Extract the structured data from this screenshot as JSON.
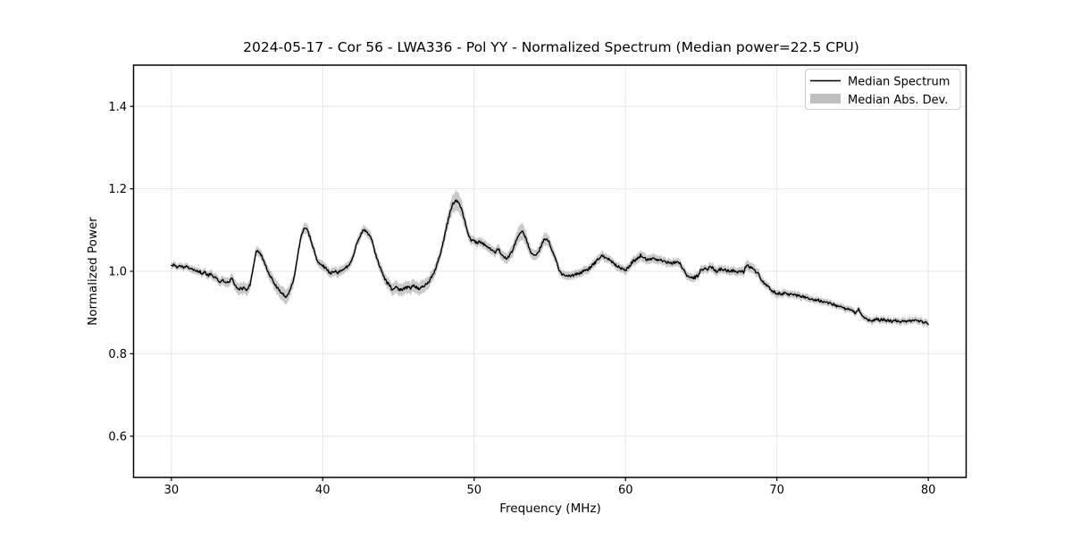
{
  "figure": {
    "title": "2024-05-17 - Cor 56 - LWA336 - Pol YY - Normalized Spectrum (Median power=22.5 CPU)",
    "background": "#ffffff"
  },
  "colors": {
    "line": "#000000",
    "band": "#808080",
    "band_opacity": 0.42,
    "grid": "#e7e7e7",
    "spine": "#000000",
    "legend_edge": "#cccccc"
  },
  "chart_data": {
    "type": "line",
    "title": "2024-05-17 - Cor 56 - LWA336 - Pol YY - Normalized Spectrum (Median power=22.5 CPU)",
    "xlabel": "Frequency (MHz)",
    "ylabel": "Normalized Power",
    "xlim": [
      27.5,
      82.5
    ],
    "ylim": [
      0.5,
      1.5
    ],
    "xticks": [
      30,
      40,
      50,
      60,
      70,
      80
    ],
    "xtick_labels": [
      "30",
      "40",
      "50",
      "60",
      "70",
      "80"
    ],
    "yticks": [
      0.6,
      0.8,
      1.0,
      1.2,
      1.4
    ],
    "ytick_labels": [
      "0.6",
      "0.8",
      "1.0",
      "1.2",
      "1.4"
    ],
    "grid": true,
    "noise_amplitude": 0.0035,
    "legend": {
      "position": "upper right",
      "entries": [
        {
          "label": "Median Spectrum",
          "type": "line",
          "color": "#000000"
        },
        {
          "label": "Median Abs. Dev.",
          "type": "patch",
          "color": "#808080"
        }
      ]
    },
    "series": [
      {
        "name": "Median Spectrum",
        "type": "line",
        "color": "#000000",
        "x": [
          30.0,
          30.2,
          30.4,
          30.6,
          30.8,
          31.0,
          31.2,
          31.4,
          31.6,
          31.8,
          32.0,
          32.2,
          32.4,
          32.6,
          32.8,
          33.0,
          33.2,
          33.4,
          33.6,
          33.8,
          34.0,
          34.2,
          34.4,
          34.6,
          34.8,
          35.0,
          35.2,
          35.4,
          35.6,
          35.8,
          36.0,
          36.2,
          36.4,
          36.6,
          36.8,
          37.0,
          37.2,
          37.4,
          37.6,
          37.8,
          38.0,
          38.2,
          38.4,
          38.6,
          38.8,
          39.0,
          39.2,
          39.4,
          39.6,
          39.8,
          40.0,
          40.2,
          40.4,
          40.6,
          40.8,
          41.0,
          41.2,
          41.4,
          41.6,
          41.8,
          42.0,
          42.2,
          42.4,
          42.6,
          42.8,
          43.0,
          43.2,
          43.4,
          43.6,
          43.8,
          44.0,
          44.2,
          44.4,
          44.6,
          44.8,
          45.0,
          45.2,
          45.4,
          45.6,
          45.8,
          46.0,
          46.2,
          46.4,
          46.6,
          46.8,
          47.0,
          47.2,
          47.4,
          47.6,
          47.8,
          48.0,
          48.2,
          48.4,
          48.6,
          48.8,
          49.0,
          49.2,
          49.4,
          49.6,
          49.8,
          50.0,
          50.2,
          50.4,
          50.6,
          50.8,
          51.0,
          51.2,
          51.4,
          51.6,
          51.8,
          52.0,
          52.2,
          52.4,
          52.6,
          52.8,
          53.0,
          53.2,
          53.4,
          53.6,
          53.8,
          54.0,
          54.2,
          54.4,
          54.6,
          54.8,
          55.0,
          55.2,
          55.4,
          55.6,
          55.8,
          56.0,
          56.2,
          56.4,
          56.6,
          56.8,
          57.0,
          57.2,
          57.4,
          57.6,
          57.8,
          58.0,
          58.2,
          58.4,
          58.6,
          58.8,
          59.0,
          59.2,
          59.4,
          59.6,
          59.8,
          60.0,
          60.2,
          60.4,
          60.6,
          60.8,
          61.0,
          61.2,
          61.4,
          61.6,
          61.8,
          62.0,
          62.2,
          62.4,
          62.6,
          62.8,
          63.0,
          63.2,
          63.4,
          63.6,
          63.8,
          64.0,
          64.2,
          64.4,
          64.6,
          64.8,
          65.0,
          65.2,
          65.4,
          65.6,
          65.8,
          66.0,
          66.2,
          66.4,
          66.6,
          66.8,
          67.0,
          67.2,
          67.4,
          67.6,
          67.8,
          68.0,
          68.2,
          68.4,
          68.6,
          68.8,
          69.0,
          69.2,
          69.4,
          69.6,
          69.8,
          70.0,
          70.2,
          70.4,
          70.6,
          70.8,
          71.0,
          71.2,
          71.4,
          71.6,
          71.8,
          72.0,
          72.2,
          72.4,
          72.6,
          72.8,
          73.0,
          73.2,
          73.4,
          73.6,
          73.8,
          74.0,
          74.2,
          74.4,
          74.6,
          74.8,
          75.0,
          75.2,
          75.4,
          75.6,
          75.8,
          76.0,
          76.2,
          76.4,
          76.6,
          76.8,
          77.0,
          77.2,
          77.4,
          77.6,
          77.8,
          78.0,
          78.2,
          78.4,
          78.6,
          78.8,
          79.0,
          79.2,
          79.4,
          79.6,
          79.8,
          80.0
        ],
        "y": [
          1.012,
          1.016,
          1.008,
          1.014,
          1.007,
          1.011,
          1.004,
          1.007,
          0.999,
          1.002,
          0.995,
          0.997,
          0.99,
          0.993,
          0.988,
          0.981,
          0.976,
          0.979,
          0.971,
          0.973,
          0.981,
          0.965,
          0.959,
          0.957,
          0.96,
          0.954,
          0.968,
          1.005,
          1.052,
          1.046,
          1.034,
          1.016,
          0.999,
          0.984,
          0.97,
          0.96,
          0.951,
          0.944,
          0.937,
          0.95,
          0.97,
          1.004,
          1.052,
          1.092,
          1.106,
          1.098,
          1.078,
          1.053,
          1.028,
          1.019,
          1.014,
          1.007,
          0.999,
          0.996,
          1.0,
          0.995,
          1.002,
          1.005,
          1.011,
          1.02,
          1.036,
          1.062,
          1.082,
          1.096,
          1.099,
          1.091,
          1.079,
          1.052,
          1.028,
          1.008,
          0.988,
          0.974,
          0.967,
          0.954,
          0.962,
          0.957,
          0.954,
          0.958,
          0.962,
          0.959,
          0.965,
          0.961,
          0.957,
          0.962,
          0.968,
          0.976,
          0.986,
          1.002,
          1.022,
          1.048,
          1.078,
          1.112,
          1.142,
          1.164,
          1.172,
          1.167,
          1.148,
          1.118,
          1.089,
          1.076,
          1.072,
          1.069,
          1.072,
          1.067,
          1.062,
          1.058,
          1.052,
          1.047,
          1.054,
          1.041,
          1.034,
          1.031,
          1.041,
          1.057,
          1.079,
          1.094,
          1.097,
          1.081,
          1.059,
          1.041,
          1.037,
          1.044,
          1.059,
          1.077,
          1.079,
          1.067,
          1.047,
          1.027,
          1.004,
          0.992,
          0.989,
          0.988,
          0.99,
          0.991,
          0.993,
          0.996,
          0.999,
          1.002,
          1.007,
          1.014,
          1.021,
          1.031,
          1.037,
          1.034,
          1.031,
          1.027,
          1.021,
          1.014,
          1.009,
          1.005,
          1.003,
          1.009,
          1.021,
          1.027,
          1.031,
          1.039,
          1.034,
          1.027,
          1.029,
          1.031,
          1.027,
          1.029,
          1.025,
          1.024,
          1.021,
          1.019,
          1.021,
          1.023,
          1.018,
          1.004,
          0.991,
          0.986,
          0.984,
          0.985,
          0.991,
          1.004,
          1.007,
          1.003,
          1.011,
          1.007,
          0.999,
          1.005,
          1.004,
          1.002,
          1.001,
          1.002,
          1.0,
          0.999,
          0.999,
          0.998,
          1.016,
          1.011,
          1.007,
          0.999,
          0.993,
          0.977,
          0.969,
          0.963,
          0.955,
          0.95,
          0.947,
          0.946,
          0.945,
          0.947,
          0.943,
          0.947,
          0.943,
          0.94,
          0.938,
          0.937,
          0.935,
          0.933,
          0.932,
          0.93,
          0.929,
          0.927,
          0.925,
          0.924,
          0.921,
          0.919,
          0.916,
          0.914,
          0.911,
          0.909,
          0.906,
          0.903,
          0.899,
          0.909,
          0.895,
          0.889,
          0.883,
          0.879,
          0.881,
          0.884,
          0.881,
          0.883,
          0.879,
          0.881,
          0.878,
          0.88,
          0.879,
          0.877,
          0.879,
          0.877,
          0.879,
          0.881,
          0.884,
          0.879,
          0.877,
          0.875,
          0.871
        ]
      },
      {
        "name": "Median Abs. Dev.",
        "type": "band",
        "color": "#808080",
        "opacity": 0.42,
        "half_width": [
          0.008,
          0.008,
          0.008,
          0.008,
          0.008,
          0.008,
          0.008,
          0.009,
          0.009,
          0.009,
          0.009,
          0.009,
          0.01,
          0.01,
          0.01,
          0.01,
          0.011,
          0.011,
          0.012,
          0.012,
          0.012,
          0.013,
          0.014,
          0.014,
          0.014,
          0.014,
          0.013,
          0.012,
          0.012,
          0.012,
          0.012,
          0.012,
          0.013,
          0.014,
          0.015,
          0.016,
          0.017,
          0.018,
          0.018,
          0.017,
          0.015,
          0.014,
          0.013,
          0.013,
          0.013,
          0.013,
          0.012,
          0.012,
          0.011,
          0.011,
          0.011,
          0.011,
          0.011,
          0.011,
          0.011,
          0.011,
          0.011,
          0.011,
          0.011,
          0.011,
          0.011,
          0.011,
          0.011,
          0.011,
          0.011,
          0.011,
          0.012,
          0.012,
          0.012,
          0.013,
          0.013,
          0.014,
          0.014,
          0.015,
          0.015,
          0.015,
          0.015,
          0.015,
          0.015,
          0.015,
          0.015,
          0.015,
          0.016,
          0.016,
          0.015,
          0.015,
          0.014,
          0.014,
          0.014,
          0.015,
          0.016,
          0.018,
          0.02,
          0.022,
          0.024,
          0.023,
          0.021,
          0.017,
          0.013,
          0.012,
          0.011,
          0.011,
          0.011,
          0.011,
          0.011,
          0.011,
          0.011,
          0.011,
          0.012,
          0.012,
          0.013,
          0.013,
          0.014,
          0.016,
          0.018,
          0.02,
          0.02,
          0.018,
          0.015,
          0.013,
          0.013,
          0.013,
          0.014,
          0.015,
          0.015,
          0.014,
          0.013,
          0.012,
          0.011,
          0.01,
          0.01,
          0.01,
          0.01,
          0.01,
          0.01,
          0.01,
          0.01,
          0.01,
          0.01,
          0.01,
          0.01,
          0.011,
          0.011,
          0.011,
          0.011,
          0.01,
          0.01,
          0.01,
          0.01,
          0.01,
          0.01,
          0.01,
          0.011,
          0.011,
          0.012,
          0.012,
          0.012,
          0.011,
          0.011,
          0.011,
          0.011,
          0.011,
          0.01,
          0.01,
          0.01,
          0.01,
          0.01,
          0.01,
          0.01,
          0.01,
          0.01,
          0.01,
          0.01,
          0.01,
          0.01,
          0.01,
          0.01,
          0.01,
          0.011,
          0.011,
          0.011,
          0.011,
          0.01,
          0.01,
          0.01,
          0.01,
          0.01,
          0.01,
          0.01,
          0.011,
          0.013,
          0.012,
          0.012,
          0.011,
          0.011,
          0.01,
          0.01,
          0.009,
          0.009,
          0.009,
          0.009,
          0.009,
          0.009,
          0.009,
          0.009,
          0.009,
          0.009,
          0.009,
          0.009,
          0.009,
          0.009,
          0.008,
          0.008,
          0.008,
          0.008,
          0.008,
          0.008,
          0.008,
          0.008,
          0.008,
          0.008,
          0.008,
          0.008,
          0.008,
          0.008,
          0.008,
          0.008,
          0.008,
          0.008,
          0.008,
          0.008,
          0.008,
          0.008,
          0.008,
          0.008,
          0.008,
          0.008,
          0.008,
          0.008,
          0.008,
          0.008,
          0.008,
          0.008,
          0.008,
          0.008,
          0.008,
          0.008,
          0.008,
          0.008,
          0.008,
          0.008
        ]
      }
    ]
  }
}
